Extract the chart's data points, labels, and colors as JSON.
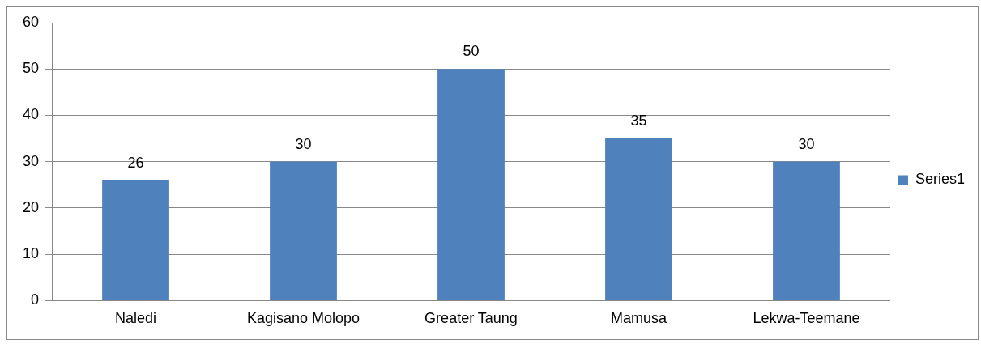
{
  "chart_data": {
    "type": "bar",
    "categories": [
      "Naledi",
      "Kagisano Molopo",
      "Greater Taung",
      "Mamusa",
      "Lekwa-Teemane"
    ],
    "series": [
      {
        "name": "Series1",
        "color": "#4f81bd",
        "values": [
          26,
          30,
          50,
          35,
          30
        ]
      }
    ],
    "ylim": [
      0,
      60
    ],
    "yticks": [
      0,
      10,
      20,
      30,
      40,
      50,
      60
    ],
    "grid": "y",
    "legend": "right",
    "data_labels": true
  }
}
